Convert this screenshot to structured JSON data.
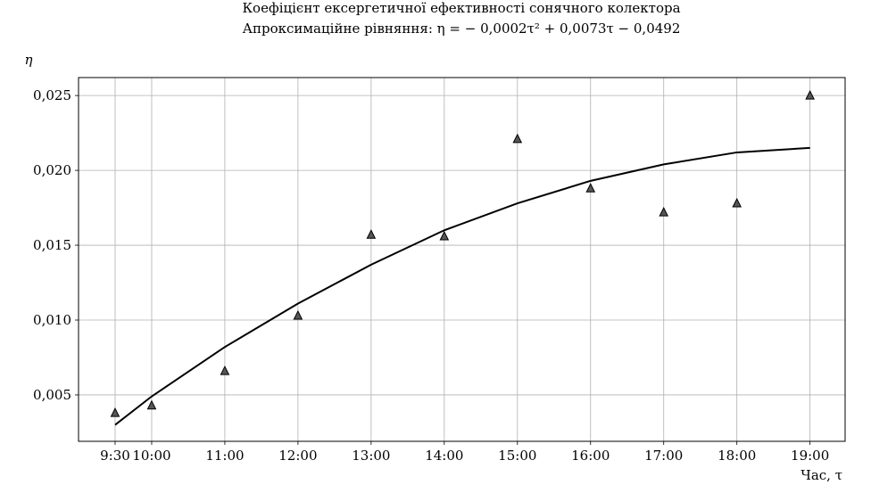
{
  "chart_data": {
    "type": "scatter",
    "title": "Коефіцієнт ексергетичної ефективності сонячного колектора",
    "subtitle": "Апроксимаційне рівняння: η = − 0,0002τ² + 0,0073τ − 0,0492",
    "xlabel": "Час, τ",
    "ylabel": "η",
    "x_ticks": [
      "9:30",
      "10:00",
      "11:00",
      "12:00",
      "13:00",
      "14:00",
      "15:00",
      "16:00",
      "17:00",
      "18:00",
      "19:00"
    ],
    "x_tick_values": [
      9.5,
      10,
      11,
      12,
      13,
      14,
      15,
      16,
      17,
      18,
      19
    ],
    "y_ticks": [
      "0,005",
      "0,010",
      "0,015",
      "0,020",
      "0,025"
    ],
    "y_tick_values": [
      0.005,
      0.01,
      0.015,
      0.02,
      0.025
    ],
    "xlim": [
      9.0,
      19.48
    ],
    "ylim": [
      0.0019,
      0.0262
    ],
    "grid": true,
    "series": [
      {
        "kind": "scatter",
        "marker": "triangle",
        "color": "#555555",
        "x": [
          9.5,
          10,
          11,
          12,
          13,
          14,
          15,
          16,
          17,
          18,
          19
        ],
        "y": [
          0.0038,
          0.0043,
          0.0066,
          0.0103,
          0.0157,
          0.0156,
          0.0221,
          0.0188,
          0.0172,
          0.0178,
          0.025
        ]
      },
      {
        "kind": "line",
        "color": "#000000",
        "x": [
          9.5,
          10,
          11,
          12,
          13,
          14,
          15,
          16,
          17,
          18,
          19
        ],
        "y": [
          0.003,
          0.0049,
          0.0082,
          0.0111,
          0.0137,
          0.016,
          0.0178,
          0.0193,
          0.0204,
          0.0212,
          0.0215
        ]
      }
    ]
  }
}
